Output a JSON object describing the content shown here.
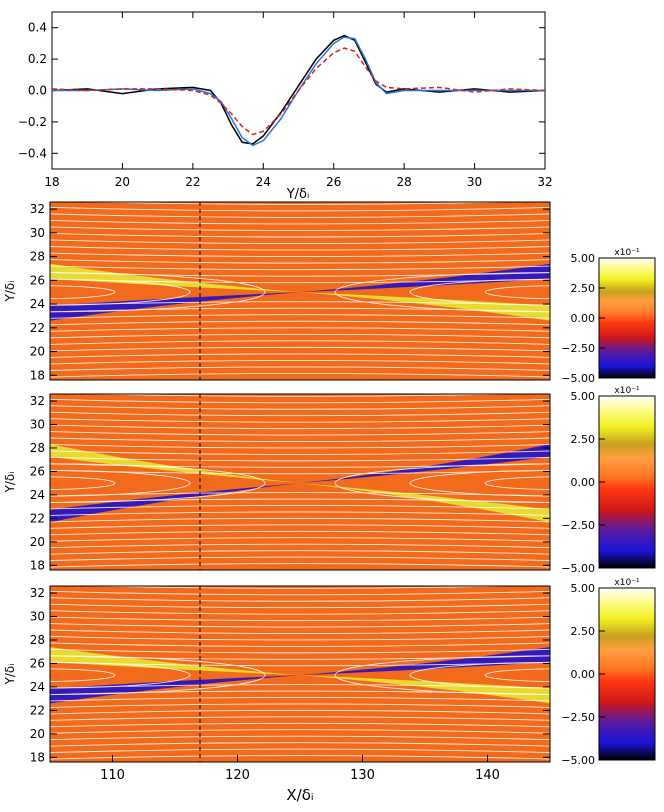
{
  "chart_data": [
    {
      "type": "line",
      "title": "",
      "xlabel": "Y/δᵢ",
      "ylabel": "",
      "xlim": [
        18,
        32
      ],
      "ylim": [
        -0.5,
        0.5
      ],
      "x_ticks": [
        "18",
        "20",
        "22",
        "24",
        "26",
        "28",
        "30",
        "32"
      ],
      "y_ticks": [
        "0.4",
        "0.2",
        "0.0",
        "−0.2",
        "−0.4"
      ],
      "grid": false,
      "series": [
        {
          "color": "#000000",
          "style": "solid",
          "x": [
            18,
            19,
            20,
            21,
            22,
            22.5,
            22.8,
            23.1,
            23.4,
            23.7,
            24.0,
            24.5,
            25.0,
            25.5,
            26.0,
            26.3,
            26.6,
            26.9,
            27.2,
            27.5,
            28,
            29,
            30,
            31,
            32
          ],
          "y": [
            0.0,
            0.01,
            -0.02,
            0.01,
            0.02,
            0.0,
            -0.08,
            -0.22,
            -0.33,
            -0.34,
            -0.29,
            -0.14,
            0.03,
            0.2,
            0.32,
            0.35,
            0.32,
            0.18,
            0.04,
            -0.01,
            0.01,
            -0.01,
            0.01,
            -0.01,
            0.0
          ]
        },
        {
          "color": "#2277dd",
          "style": "solid",
          "x": [
            18,
            19,
            20,
            21,
            22,
            22.5,
            22.8,
            23.1,
            23.4,
            23.7,
            24.0,
            24.5,
            25.0,
            25.5,
            26.0,
            26.3,
            26.6,
            26.9,
            27.2,
            27.5,
            28,
            29,
            30,
            31,
            32
          ],
          "y": [
            0.0,
            0.0,
            0.01,
            0.0,
            0.01,
            -0.02,
            -0.07,
            -0.18,
            -0.3,
            -0.35,
            -0.32,
            -0.18,
            0.0,
            0.17,
            0.3,
            0.34,
            0.33,
            0.2,
            0.05,
            -0.02,
            0.0,
            0.0,
            0.0,
            0.0,
            0.0
          ]
        },
        {
          "color": "#dd2222",
          "style": "dashed",
          "x": [
            18,
            19,
            20,
            21,
            22,
            22.5,
            22.8,
            23.1,
            23.4,
            23.7,
            24.0,
            24.5,
            25.0,
            25.5,
            26.0,
            26.3,
            26.6,
            26.9,
            27.2,
            27.5,
            28,
            29,
            30,
            31,
            32
          ],
          "y": [
            0.01,
            0.0,
            0.01,
            0.01,
            0.0,
            -0.03,
            -0.08,
            -0.15,
            -0.23,
            -0.28,
            -0.26,
            -0.15,
            0.0,
            0.14,
            0.24,
            0.27,
            0.25,
            0.15,
            0.06,
            0.02,
            0.01,
            0.02,
            -0.01,
            0.01,
            0.0
          ]
        }
      ]
    },
    {
      "type": "heatmap",
      "ylabel": "Y/δᵢ",
      "xlim": [
        105,
        145
      ],
      "ylim": [
        17.6,
        32.6
      ],
      "y_ticks": [
        "18",
        "20",
        "22",
        "24",
        "26",
        "28",
        "30",
        "32"
      ],
      "x_center": 125,
      "y_center": 25,
      "pattern": "lobes-same-width",
      "dashed_line_x": 117,
      "colorbar": {
        "exponent": "x10⁻¹",
        "min": -5.0,
        "max": 5.0,
        "ticks": [
          "5.00",
          "2.50",
          "0.00",
          "−2.50",
          "−5.00"
        ]
      }
    },
    {
      "type": "heatmap",
      "ylabel": "Y/δᵢ",
      "xlim": [
        105,
        145
      ],
      "ylim": [
        17.6,
        32.6
      ],
      "y_ticks": [
        "18",
        "20",
        "22",
        "24",
        "26",
        "28",
        "30",
        "32"
      ],
      "x_center": 125,
      "y_center": 25,
      "pattern": "lobes-widening",
      "dashed_line_x": 117,
      "colorbar": {
        "exponent": "x10⁻¹",
        "min": -5.0,
        "max": 5.0,
        "ticks": [
          "5.00",
          "2.50",
          "0.00",
          "−2.50",
          "−5.00"
        ]
      }
    },
    {
      "type": "heatmap",
      "ylabel": "Y/δᵢ",
      "xlabel": "X/δᵢ",
      "xlim": [
        105,
        145
      ],
      "ylim": [
        17.6,
        32.6
      ],
      "x_ticks": [
        "110",
        "120",
        "130",
        "140"
      ],
      "y_ticks": [
        "18",
        "20",
        "22",
        "24",
        "26",
        "28",
        "30",
        "32"
      ],
      "x_center": 125,
      "y_center": 25,
      "pattern": "lobes-same-width",
      "dashed_line_x": 117,
      "colorbar": {
        "exponent": "x10⁻¹",
        "min": -5.0,
        "max": 5.0,
        "ticks": [
          "5.00",
          "2.50",
          "0.00",
          "−2.50",
          "−5.00"
        ]
      }
    }
  ]
}
